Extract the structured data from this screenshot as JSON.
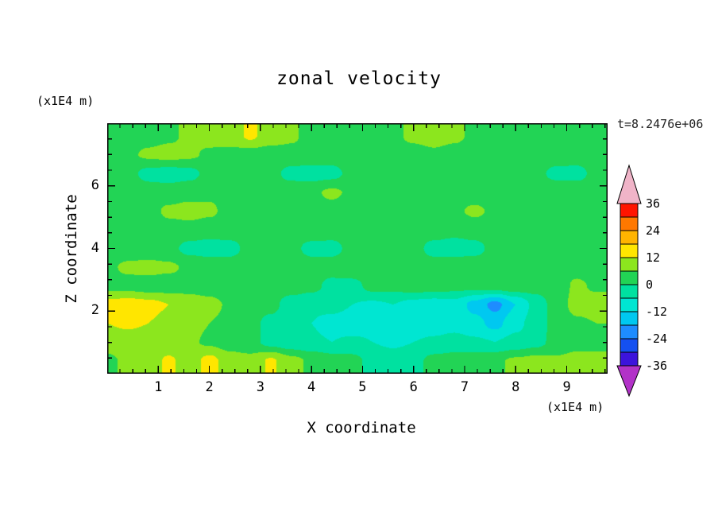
{
  "title": "zonal velocity",
  "time_label": "t=8.2476e+06",
  "x_axis": {
    "label": "X coordinate",
    "unit": "(x1E4 m)",
    "major_ticks": [
      1,
      2,
      3,
      4,
      5,
      6,
      7,
      8,
      9
    ],
    "range": [
      0,
      9.8
    ]
  },
  "y_axis": {
    "label": "Z coordinate",
    "unit": "(x1E4 m)",
    "major_ticks": [
      2,
      4,
      6
    ],
    "range": [
      0,
      8
    ]
  },
  "colorbar": {
    "tick_labels": [
      36,
      24,
      12,
      0,
      -12,
      -24,
      -36
    ]
  },
  "chart_data": {
    "type": "heatmap",
    "title": "zonal velocity",
    "xlabel": "X coordinate (x1E4 m)",
    "ylabel": "Z coordinate (x1E4 m)",
    "time_annotation": "t=8.2476e+06",
    "x_range": [
      0,
      9.8
    ],
    "z_range": [
      0,
      8
    ],
    "legend_position": "right-colorbar-with-over-under-arrows",
    "levels": [
      -36,
      -30,
      -24,
      -18,
      -12,
      -6,
      0,
      6,
      12,
      18,
      24,
      30,
      36
    ],
    "colors": [
      "#b232c8",
      "#3c14dc",
      "#1450f0",
      "#1e8cff",
      "#00c8f0",
      "#00e6d2",
      "#00e1a0",
      "#22d455",
      "#8ce61e",
      "#ffe600",
      "#ffb400",
      "#ff7800",
      "#ff1400",
      "#f0b4c8"
    ],
    "grid": {
      "x": [
        0,
        0.4,
        0.8,
        1.2,
        1.6,
        2.0,
        2.4,
        2.8,
        3.2,
        3.6,
        4.0,
        4.4,
        4.8,
        5.2,
        5.6,
        6.0,
        6.4,
        6.8,
        7.2,
        7.6,
        8.0,
        8.4,
        8.8,
        9.2,
        9.6
      ],
      "z_rows_top_to_bottom": [
        7.6,
        7.0,
        6.4,
        5.8,
        5.2,
        4.6,
        4.0,
        3.4,
        2.8,
        2.2,
        1.6,
        1.0,
        0.4
      ],
      "values": [
        [
          3,
          3,
          4,
          5,
          7,
          8,
          9,
          13,
          9,
          7,
          4,
          3,
          3,
          4,
          5,
          7,
          8,
          7,
          5,
          4,
          3,
          3,
          4,
          4,
          3
        ],
        [
          4,
          5,
          7,
          8,
          7,
          5,
          4,
          3,
          3,
          4,
          4,
          3,
          3,
          3,
          4,
          4,
          5,
          4,
          3,
          3,
          4,
          5,
          4,
          3,
          3
        ],
        [
          3,
          2,
          -2,
          -3,
          -2,
          2,
          3,
          3,
          2,
          -2,
          -3,
          -2,
          2,
          3,
          4,
          3,
          3,
          2,
          2,
          3,
          3,
          2,
          -2,
          -2,
          2
        ],
        [
          4,
          4,
          3,
          3,
          4,
          5,
          4,
          3,
          3,
          4,
          5,
          7,
          5,
          4,
          3,
          3,
          4,
          4,
          3,
          3,
          4,
          4,
          5,
          4,
          3
        ],
        [
          3,
          3,
          4,
          7,
          8,
          7,
          4,
          3,
          3,
          3,
          4,
          4,
          3,
          2,
          2,
          3,
          4,
          5,
          7,
          5,
          3,
          3,
          4,
          3,
          3
        ],
        [
          4,
          3,
          3,
          4,
          4,
          3,
          3,
          2,
          2,
          3,
          4,
          3,
          3,
          4,
          4,
          3,
          3,
          2,
          3,
          4,
          4,
          3,
          3,
          4,
          4
        ],
        [
          3,
          3,
          2,
          2,
          -2,
          -3,
          -2,
          2,
          3,
          2,
          -2,
          -2,
          2,
          3,
          3,
          2,
          -2,
          -3,
          -2,
          2,
          3,
          3,
          2,
          2,
          3
        ],
        [
          5,
          7,
          8,
          7,
          5,
          4,
          3,
          3,
          4,
          4,
          3,
          3,
          4,
          5,
          4,
          3,
          3,
          4,
          4,
          3,
          3,
          4,
          5,
          4,
          3
        ],
        [
          4,
          4,
          3,
          3,
          4,
          3,
          2,
          2,
          3,
          3,
          2,
          -2,
          -2,
          2,
          2,
          3,
          3,
          2,
          2,
          3,
          4,
          3,
          3,
          7,
          5
        ],
        [
          14,
          15,
          14,
          12,
          9,
          8,
          5,
          3,
          2,
          -3,
          -5,
          -4,
          -6,
          -7,
          -6,
          -8,
          -9,
          -8,
          -14,
          -20,
          -12,
          -4,
          3,
          8,
          9
        ],
        [
          12,
          13,
          12,
          10,
          8,
          6,
          4,
          2,
          -2,
          -4,
          -6,
          -8,
          -9,
          -8,
          -9,
          -10,
          -9,
          -8,
          -10,
          -14,
          -8,
          -3,
          2,
          5,
          6
        ],
        [
          8,
          9,
          8,
          8,
          7,
          5,
          3,
          2,
          -2,
          -4,
          -5,
          -6,
          -5,
          -6,
          -7,
          -6,
          -5,
          -4,
          -5,
          -6,
          -4,
          -2,
          2,
          4,
          5
        ],
        [
          5,
          7,
          9,
          13,
          9,
          14,
          9,
          8,
          13,
          8,
          5,
          3,
          2,
          -2,
          -3,
          -2,
          2,
          3,
          4,
          5,
          7,
          8,
          7,
          8,
          7
        ]
      ]
    }
  }
}
